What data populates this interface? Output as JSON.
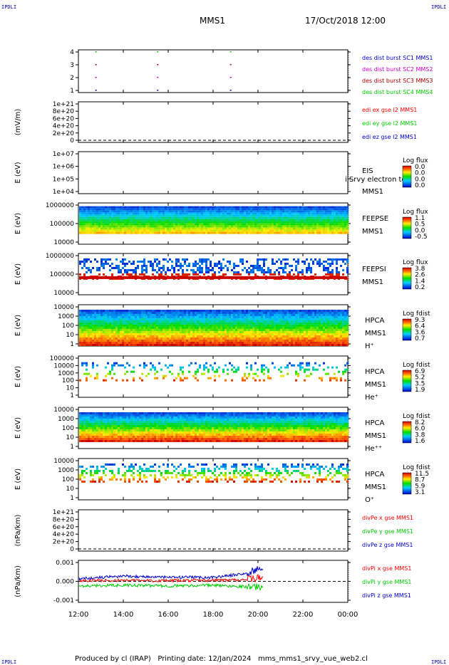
{
  "header": {
    "corner_tl": "IPDLI",
    "corner_tr": "IPDLI",
    "corner_bl": "IPDLI",
    "corner_br": "IPDLI",
    "mission": "MMS1",
    "date": "17/Oct/2018 12:00"
  },
  "footer": {
    "produced": "Produced by cl (IRAP)",
    "printing": "Printing date: 12/Jan/2024",
    "file": "mms_mms1_srvy_vue_web2.cl"
  },
  "colors": {
    "red": "#ff0000",
    "green": "#00cc00",
    "blue": "#0000cc",
    "magenta": "#cc00cc",
    "dark_red": "#aa0000"
  },
  "chart_data": [
    {
      "id": "burst",
      "type": "scatter",
      "ylabel": "",
      "y_ticks": [
        "4",
        "3",
        "2",
        "1"
      ],
      "legend": [
        {
          "text": "des dist burst SC1 MMS1",
          "color": "#0000cc"
        },
        {
          "text": "des dist burst SC2 MMS2",
          "color": "#cc00cc"
        },
        {
          "text": "des dist burst SC3 MMS3",
          "color": "#aa0000"
        },
        {
          "text": "des dist burst SC4 MMS4",
          "color": "#00cc00"
        }
      ],
      "marks_hours": [
        12.75,
        15.5,
        18.75
      ]
    },
    {
      "id": "edi",
      "type": "line",
      "ylabel": "(mV/m)",
      "y_ticks": [
        "1e+21",
        "8e+20",
        "6e+20",
        "4e+20",
        "2e+20",
        "0"
      ],
      "legend": [
        {
          "text": "edi ex gse l2 MMS1",
          "color": "#ff0000"
        },
        {
          "text": "edi ey gse l2 MMS1",
          "color": "#00cc00"
        },
        {
          "text": "edi ez gse l2 MMS1",
          "color": "#0000cc"
        }
      ]
    },
    {
      "id": "eis",
      "type": "heatmap",
      "ylabel": "E (eV)",
      "y_ticks": [
        "1e+07",
        "1e+06",
        "1e+05",
        "1e+04"
      ],
      "labels": [
        "EIS",
        "MMS1"
      ],
      "overlay_text": "i Srvy electron to",
      "colorbar_title": "Log flux",
      "colorbar_ticks": [
        "0.0",
        "0.0",
        "0.0",
        "0.0"
      ]
    },
    {
      "id": "feepse",
      "type": "heatmap",
      "ylabel": "E (eV)",
      "y_ticks": [
        "1000000",
        "100000",
        "10000"
      ],
      "labels": [
        "FEEPSE",
        "MMS1"
      ],
      "colorbar_title": "Log flux",
      "colorbar_ticks": [
        "1.1",
        "0.5",
        "0.0",
        "-0.5"
      ]
    },
    {
      "id": "feepsi",
      "type": "heatmap",
      "ylabel": "E (eV)",
      "y_ticks": [
        "1000000",
        "100000",
        "10000"
      ],
      "labels": [
        "FEEPSI",
        "MMS1"
      ],
      "colorbar_title": "Log flux",
      "colorbar_ticks": [
        "3.8",
        "2.6",
        "1.4",
        "0.2"
      ]
    },
    {
      "id": "hpca_h",
      "type": "heatmap",
      "ylabel": "E (eV)",
      "y_ticks": [
        "10000",
        "1000",
        "100",
        "10",
        "1"
      ],
      "labels": [
        "HPCA",
        "MMS1",
        "H⁺"
      ],
      "colorbar_title": "Log fdist",
      "colorbar_ticks": [
        "9.3",
        "6.4",
        "3.6",
        "0.7"
      ]
    },
    {
      "id": "hpca_he",
      "type": "heatmap",
      "ylabel": "E (eV)",
      "y_ticks": [
        "100000",
        "10000",
        "1000",
        "100",
        "10",
        "1"
      ],
      "labels": [
        "HPCA",
        "MMS1",
        "He⁺"
      ],
      "colorbar_title": "Log fdist",
      "colorbar_ticks": [
        "6.9",
        "5.2",
        "3.5",
        "1.9"
      ]
    },
    {
      "id": "hpca_hepp",
      "type": "heatmap",
      "ylabel": "E (eV)",
      "y_ticks": [
        "10000",
        "1000",
        "100",
        "10",
        "1"
      ],
      "labels": [
        "HPCA",
        "MMS1",
        "He⁺⁺"
      ],
      "colorbar_title": "Log fdist",
      "colorbar_ticks": [
        "8.2",
        "6.0",
        "3.8",
        "1.6"
      ]
    },
    {
      "id": "hpca_o",
      "type": "heatmap",
      "ylabel": "E (eV)",
      "y_ticks": [
        "10000",
        "1000",
        "100",
        "10",
        "1"
      ],
      "labels": [
        "HPCA",
        "MMS1",
        "O⁺"
      ],
      "colorbar_title": "Log fdist",
      "colorbar_ticks": [
        "11.5",
        "8.7",
        "5.9",
        "3.1"
      ]
    },
    {
      "id": "divpe",
      "type": "line",
      "ylabel": "(nPa/km)",
      "y_ticks": [
        "1e+21",
        "8e+20",
        "6e+20",
        "4e+20",
        "2e+20",
        "0"
      ],
      "legend": [
        {
          "text": "divPe x gse MMS1",
          "color": "#ff0000"
        },
        {
          "text": "divPe y gse MMS1",
          "color": "#00cc00"
        },
        {
          "text": "divPe z gse MMS1",
          "color": "#0000cc"
        }
      ]
    },
    {
      "id": "divpi",
      "type": "line",
      "ylabel": "(nPa/km)",
      "y_ticks": [
        "0.001",
        "0.000",
        "-0.001"
      ],
      "ylim": [
        -0.0016,
        0.0016
      ],
      "legend": [
        {
          "text": "divPi x gse MMS1",
          "color": "#ff0000"
        },
        {
          "text": "divPi y gse MMS1",
          "color": "#00cc00"
        },
        {
          "text": "divPi z gse MMS1",
          "color": "#0000cc"
        }
      ],
      "series": [
        {
          "name": "divPi x gse MMS1",
          "color": "#ff0000",
          "x": [
            12.0,
            14.0,
            16.0,
            18.0,
            19.5,
            20.25
          ],
          "y": [
            5e-05,
            8e-05,
            5e-05,
            8e-05,
            0.00015,
            0.0003
          ]
        },
        {
          "name": "divPi y gse MMS1",
          "color": "#00cc00",
          "x": [
            12.0,
            14.0,
            16.0,
            18.0,
            19.5,
            20.25
          ],
          "y": [
            -0.00035,
            -0.0003,
            -0.00035,
            -0.0003,
            -0.0004,
            -0.00045
          ]
        },
        {
          "name": "divPi z gse MMS1",
          "color": "#0000cc",
          "x": [
            12.0,
            14.0,
            16.0,
            18.0,
            19.5,
            20.25
          ],
          "y": [
            0.0002,
            0.0004,
            0.0003,
            0.0003,
            0.0006,
            0.0011
          ]
        }
      ]
    }
  ],
  "time_axis": {
    "xlim": [
      12,
      24
    ],
    "ticks": [
      "12:00",
      "14:00",
      "16:00",
      "18:00",
      "20:00",
      "22:00",
      "00:00"
    ]
  }
}
